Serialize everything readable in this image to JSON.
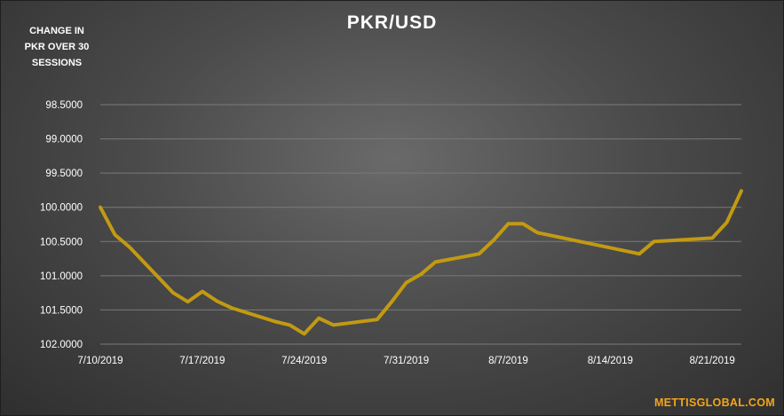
{
  "chart_data": {
    "type": "line",
    "title": "PKR/USD",
    "ylabel": "CHANGE IN PKR OVER 30 SESSIONS",
    "y_axis_inverted": true,
    "ylim": [
      98.5,
      102.0
    ],
    "yticks": [
      "98.5000",
      "99.0000",
      "99.5000",
      "100.0000",
      "100.5000",
      "101.0000",
      "101.5000",
      "102.0000"
    ],
    "xticks": [
      "7/10/2019",
      "7/17/2019",
      "7/24/2019",
      "7/31/2019",
      "8/7/2019",
      "8/14/2019",
      "8/21/2019"
    ],
    "xlim": [
      "2019-07-10",
      "2019-08-23"
    ],
    "grid": true,
    "line_color": "#c29a12",
    "series": [
      {
        "points": [
          {
            "x": "2019-07-10",
            "y": 100.0
          },
          {
            "x": "2019-07-11",
            "y": 100.4
          },
          {
            "x": "2019-07-12",
            "y": 100.58
          },
          {
            "x": "2019-07-15",
            "y": 101.25
          },
          {
            "x": "2019-07-16",
            "y": 101.38
          },
          {
            "x": "2019-07-17",
            "y": 101.23
          },
          {
            "x": "2019-07-18",
            "y": 101.37
          },
          {
            "x": "2019-07-19",
            "y": 101.47
          },
          {
            "x": "2019-07-22",
            "y": 101.67
          },
          {
            "x": "2019-07-23",
            "y": 101.72
          },
          {
            "x": "2019-07-24",
            "y": 101.85
          },
          {
            "x": "2019-07-25",
            "y": 101.62
          },
          {
            "x": "2019-07-26",
            "y": 101.72
          },
          {
            "x": "2019-07-29",
            "y": 101.64
          },
          {
            "x": "2019-07-30",
            "y": 101.38
          },
          {
            "x": "2019-07-31",
            "y": 101.1
          },
          {
            "x": "2019-08-01",
            "y": 100.98
          },
          {
            "x": "2019-08-02",
            "y": 100.8
          },
          {
            "x": "2019-08-05",
            "y": 100.68
          },
          {
            "x": "2019-08-06",
            "y": 100.48
          },
          {
            "x": "2019-08-07",
            "y": 100.24
          },
          {
            "x": "2019-08-08",
            "y": 100.24
          },
          {
            "x": "2019-08-09",
            "y": 100.37
          },
          {
            "x": "2019-08-16",
            "y": 100.68
          },
          {
            "x": "2019-08-17",
            "y": 100.5
          },
          {
            "x": "2019-08-21",
            "y": 100.45
          },
          {
            "x": "2019-08-22",
            "y": 100.22
          },
          {
            "x": "2019-08-23",
            "y": 99.76
          }
        ]
      }
    ]
  },
  "brand": "METTISGLOBAL.COM",
  "side_label": [
    "CHANGE IN",
    "PKR OVER 30",
    "SESSIONS"
  ]
}
